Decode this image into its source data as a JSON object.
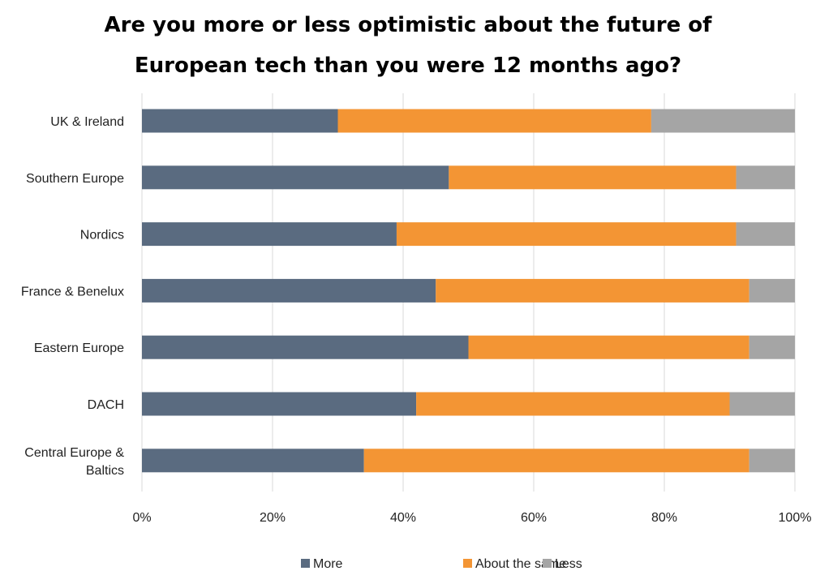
{
  "chart_data": {
    "type": "bar",
    "orientation": "horizontal",
    "stacked": true,
    "percent_stacked": true,
    "title": "Are you more or less optimistic about the future of European tech than you were 12 months ago?",
    "title_lines": [
      "Are you more or less optimistic about the future of",
      "European tech than you were 12 months ago?"
    ],
    "categories": [
      "UK & Ireland",
      "Southern Europe",
      "Nordics",
      "France & Benelux",
      "Eastern Europe",
      "DACH",
      "Central Europe & Baltics"
    ],
    "category_label_lines": [
      [
        "UK & Ireland"
      ],
      [
        "Southern Europe"
      ],
      [
        "Nordics"
      ],
      [
        "France & Benelux"
      ],
      [
        "Eastern Europe"
      ],
      [
        "DACH"
      ],
      [
        "Central Europe &",
        "Baltics"
      ]
    ],
    "series": [
      {
        "name": "More",
        "color": "#5a6b80",
        "values": [
          30,
          47,
          39,
          45,
          50,
          42,
          34
        ]
      },
      {
        "name": "About the same",
        "color": "#f39534",
        "values": [
          48,
          44,
          52,
          48,
          43,
          48,
          59
        ]
      },
      {
        "name": "Less",
        "color": "#a5a5a5",
        "values": [
          22,
          9,
          9,
          7,
          7,
          10,
          7
        ]
      }
    ],
    "xlim": [
      0,
      100
    ],
    "x_ticks": [
      "0%",
      "20%",
      "40%",
      "60%",
      "80%",
      "100%"
    ],
    "grid": "vertical",
    "legend_position": "bottom"
  }
}
